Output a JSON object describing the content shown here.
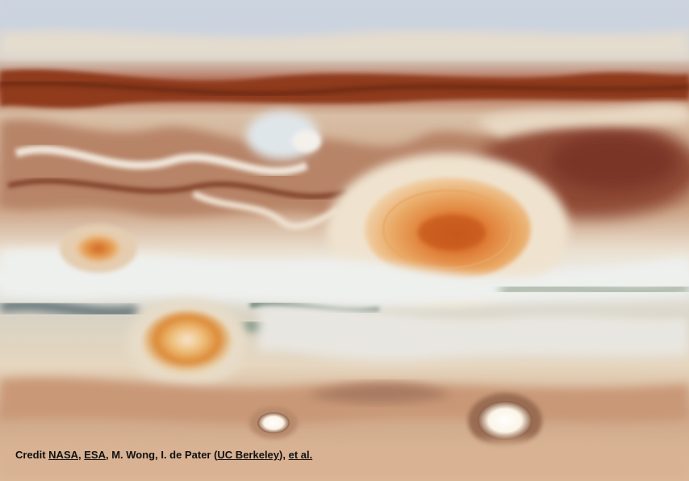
{
  "image": {
    "subject": "Jupiter atmosphere close-up with three red spots",
    "colors": {
      "top_haze": "#cfd5de",
      "dark_belt": "#8a3d1f",
      "tan": "#d9b38d",
      "cream": "#efe3cf",
      "great_red_spot": "#d9742c",
      "white_zone": "#eef0ee",
      "teal": "#5f7d70"
    }
  },
  "credit": {
    "prefix": "Credit ",
    "nasa": "NASA",
    "sep1": ", ",
    "esa": "ESA",
    "people": ", M. Wong, I. de Pater (",
    "ucb": "UC Berkeley",
    "sep2": "), ",
    "etal": "et al."
  }
}
